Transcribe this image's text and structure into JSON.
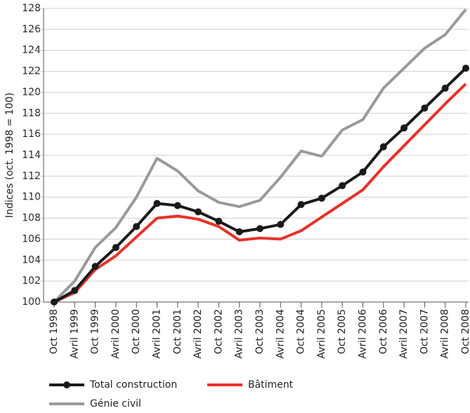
{
  "chart_data": {
    "type": "line",
    "ylabel": "Indices (oct. 1998 = 100)",
    "categories": [
      "Oct 1998",
      "Avril 1999",
      "Oct 1999",
      "Avril 2000",
      "Oct 2000",
      "Avril 2001",
      "Oct 2001",
      "Avril 2002",
      "Oct 2002",
      "Avril 2003",
      "Oct 2003",
      "Avril 2004",
      "Oct 2004",
      "Avril 2005",
      "Oct 2005",
      "Avril 2006",
      "Oct 2006",
      "Avril 2007",
      "Oct 2007",
      "Avril 2008",
      "Oct 2008"
    ],
    "series": [
      {
        "name": "Total construction",
        "color": "#1a1a1a",
        "markers": true,
        "values": [
          100,
          101.1,
          103.4,
          105.2,
          107.2,
          109.4,
          109.2,
          108.6,
          107.7,
          106.7,
          107.0,
          107.4,
          109.3,
          109.9,
          111.1,
          112.4,
          114.8,
          116.6,
          118.5,
          120.4,
          122.3
        ]
      },
      {
        "name": "Bâtiment",
        "color": "#e8312a",
        "markers": false,
        "values": [
          100,
          100.9,
          103.1,
          104.4,
          106.2,
          108.0,
          108.2,
          107.9,
          107.2,
          105.9,
          106.1,
          106.0,
          106.8,
          108.1,
          109.4,
          110.7,
          112.9,
          114.9,
          116.9,
          118.9,
          120.8
        ]
      },
      {
        "name": "Génie civil",
        "color": "#9a9a9a",
        "markers": false,
        "values": [
          100,
          102.0,
          105.2,
          107.1,
          110.0,
          113.7,
          112.5,
          110.6,
          109.5,
          109.1,
          109.7,
          111.9,
          114.4,
          113.9,
          116.4,
          117.4,
          120.4,
          122.3,
          124.2,
          125.5,
          127.9
        ]
      }
    ],
    "ylim": [
      100,
      128
    ],
    "yticks": [
      100,
      102,
      104,
      106,
      108,
      110,
      112,
      114,
      116,
      118,
      120,
      122,
      124,
      126,
      128
    ],
    "grid": true,
    "legend": "bottom"
  }
}
